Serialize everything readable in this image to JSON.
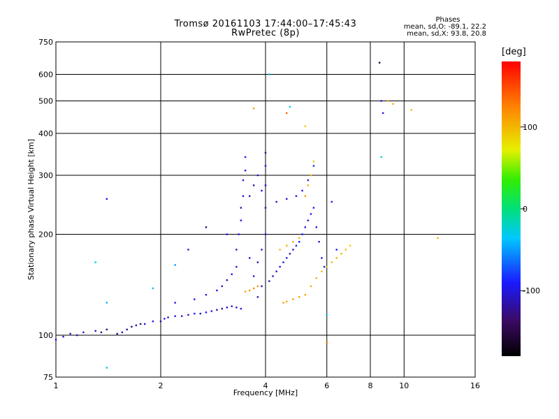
{
  "chart_data": {
    "type": "scatter",
    "title": "Tromsø 20161103 17:44:00–17:45:43",
    "subtitle": "RwPretec (8p)",
    "xlabel": "Frequency [MHz]",
    "ylabel": "Stationary phase Virtual Height [km]",
    "x_scale": "log",
    "y_scale": "log",
    "xlim": [
      1,
      16
    ],
    "ylim": [
      75,
      750
    ],
    "x_ticks": [
      "1",
      "2",
      "4",
      "6",
      "8",
      "10",
      "16"
    ],
    "y_ticks": [
      "75",
      "100",
      "200",
      "300",
      "400",
      "500",
      "600",
      "750"
    ],
    "x_gridlines": [
      1,
      2,
      4,
      6,
      8,
      10,
      16
    ],
    "y_gridlines": [
      75,
      100,
      200,
      300,
      400,
      500,
      600,
      750
    ],
    "grid": true,
    "stats": {
      "heading": "Phases",
      "o_line": "mean, sd,O: -89.1, 22.2",
      "x_line": "mean, sd,X:  93.8, 20.8"
    },
    "colorbar": {
      "label": "[deg]",
      "range": [
        -180,
        180
      ],
      "ticks": [
        "100",
        "0",
        "-100"
      ]
    },
    "series": [
      {
        "points": [
          [
            1.0,
            97,
            -95
          ],
          [
            1.05,
            99,
            -100
          ],
          [
            1.1,
            101,
            -110
          ],
          [
            1.15,
            100,
            -120
          ],
          [
            1.2,
            102,
            -105
          ],
          [
            1.3,
            103,
            -115
          ],
          [
            1.35,
            102,
            -125
          ],
          [
            1.4,
            104,
            -130
          ],
          [
            1.5,
            101,
            -128
          ],
          [
            1.55,
            102,
            -115
          ],
          [
            1.6,
            104,
            -120
          ],
          [
            1.65,
            106,
            -130
          ],
          [
            1.7,
            107,
            -110
          ],
          [
            1.75,
            108,
            -125
          ],
          [
            1.8,
            108,
            -105
          ],
          [
            1.9,
            110,
            -100
          ],
          [
            2.0,
            110,
            -115
          ],
          [
            2.05,
            112,
            -95
          ],
          [
            2.1,
            113,
            -110
          ],
          [
            2.2,
            114,
            -105
          ],
          [
            2.3,
            114,
            -100
          ],
          [
            2.4,
            115,
            -110
          ],
          [
            2.5,
            116,
            -95
          ],
          [
            2.6,
            116,
            -105
          ],
          [
            2.7,
            117,
            -90
          ],
          [
            2.8,
            118,
            -100
          ],
          [
            2.9,
            119,
            -115
          ],
          [
            3.0,
            120,
            -120
          ],
          [
            3.1,
            121,
            -105
          ],
          [
            3.2,
            122,
            -110
          ],
          [
            3.3,
            121,
            -115
          ],
          [
            3.4,
            120,
            -100
          ],
          [
            2.2,
            125,
            -95
          ],
          [
            2.5,
            128,
            -90
          ],
          [
            2.7,
            132,
            -100
          ],
          [
            2.9,
            136,
            -95
          ],
          [
            3.0,
            140,
            -100
          ],
          [
            3.1,
            146,
            -105
          ],
          [
            3.2,
            152,
            -95
          ],
          [
            3.3,
            160,
            -110
          ],
          [
            3.3,
            180,
            -110
          ],
          [
            3.35,
            200,
            -105
          ],
          [
            3.4,
            220,
            -100
          ],
          [
            3.4,
            240,
            -110
          ],
          [
            3.45,
            260,
            -105
          ],
          [
            3.45,
            290,
            -95
          ],
          [
            3.5,
            310,
            -100
          ],
          [
            3.5,
            340,
            -90
          ],
          [
            3.6,
            170,
            -105
          ],
          [
            3.7,
            150,
            -100
          ],
          [
            3.8,
            165,
            -110
          ],
          [
            3.9,
            180,
            -95
          ],
          [
            4.0,
            200,
            -100
          ],
          [
            4.0,
            240,
            -115
          ],
          [
            4.0,
            280,
            -110
          ],
          [
            4.0,
            320,
            -105
          ],
          [
            4.0,
            350,
            -120
          ],
          [
            3.8,
            130,
            -120
          ],
          [
            3.9,
            140,
            -110
          ],
          [
            4.1,
            145,
            -115
          ],
          [
            4.2,
            150,
            -110
          ],
          [
            4.3,
            155,
            -105
          ],
          [
            4.4,
            160,
            -100
          ],
          [
            4.5,
            165,
            -95
          ],
          [
            4.6,
            170,
            -100
          ],
          [
            4.7,
            175,
            -110
          ],
          [
            4.8,
            180,
            -105
          ],
          [
            4.9,
            185,
            -100
          ],
          [
            5.0,
            190,
            -95
          ],
          [
            5.1,
            200,
            -90
          ],
          [
            5.2,
            210,
            -95
          ],
          [
            5.3,
            220,
            -100
          ],
          [
            5.4,
            230,
            -90
          ],
          [
            5.5,
            240,
            -100
          ],
          [
            5.6,
            210,
            -110
          ],
          [
            5.7,
            190,
            -95
          ],
          [
            5.8,
            170,
            -105
          ],
          [
            5.9,
            160,
            -100
          ],
          [
            4.3,
            250,
            -110
          ],
          [
            4.6,
            255,
            -105
          ],
          [
            4.9,
            260,
            -100
          ],
          [
            5.1,
            270,
            -95
          ],
          [
            5.3,
            290,
            -90
          ],
          [
            5.5,
            320,
            -85
          ],
          [
            3.6,
            260,
            -110
          ],
          [
            3.7,
            280,
            -120
          ],
          [
            3.8,
            300,
            -105
          ],
          [
            3.9,
            270,
            -100
          ],
          [
            3.5,
            135,
            110
          ],
          [
            3.6,
            136,
            115
          ],
          [
            3.7,
            138,
            120
          ],
          [
            3.8,
            140,
            118
          ],
          [
            4.5,
            125,
            115
          ],
          [
            4.6,
            126,
            110
          ],
          [
            4.8,
            128,
            112
          ],
          [
            5.0,
            130,
            108
          ],
          [
            5.2,
            132,
            110
          ],
          [
            5.4,
            140,
            105
          ],
          [
            5.6,
            148,
            100
          ],
          [
            5.8,
            155,
            98
          ],
          [
            6.0,
            160,
            95
          ],
          [
            6.2,
            165,
            100
          ],
          [
            6.4,
            170,
            105
          ],
          [
            6.6,
            175,
            100
          ],
          [
            6.8,
            180,
            95
          ],
          [
            7.0,
            185,
            90
          ],
          [
            4.4,
            180,
            95
          ],
          [
            4.6,
            185,
            100
          ],
          [
            4.8,
            190,
            105
          ],
          [
            5.0,
            195,
            100
          ],
          [
            5.2,
            260,
            110
          ],
          [
            5.3,
            280,
            105
          ],
          [
            5.4,
            300,
            100
          ],
          [
            5.5,
            330,
            95
          ],
          [
            8.5,
            650,
            -150
          ],
          [
            8.6,
            500,
            -100
          ],
          [
            8.7,
            460,
            -90
          ],
          [
            9.0,
            500,
            110
          ],
          [
            9.3,
            490,
            105
          ],
          [
            10.5,
            470,
            100
          ],
          [
            12.5,
            195,
            105
          ],
          [
            8.6,
            340,
            -20
          ],
          [
            4.1,
            600,
            -40
          ],
          [
            3.7,
            475,
            110
          ],
          [
            1.4,
            255,
            -90
          ],
          [
            1.3,
            165,
            -30
          ],
          [
            1.4,
            125,
            -40
          ],
          [
            1.4,
            80,
            -30
          ],
          [
            1.9,
            138,
            -40
          ],
          [
            2.2,
            162,
            -50
          ],
          [
            2.4,
            180,
            -95
          ],
          [
            2.7,
            210,
            -140
          ],
          [
            3.1,
            200,
            -100
          ],
          [
            6.0,
            115,
            -30
          ],
          [
            6.0,
            95,
            130
          ],
          [
            6.2,
            250,
            -95
          ],
          [
            6.4,
            180,
            -90
          ],
          [
            4.7,
            480,
            -30
          ],
          [
            5.2,
            420,
            90
          ],
          [
            4.6,
            460,
            140
          ]
        ]
      }
    ]
  }
}
